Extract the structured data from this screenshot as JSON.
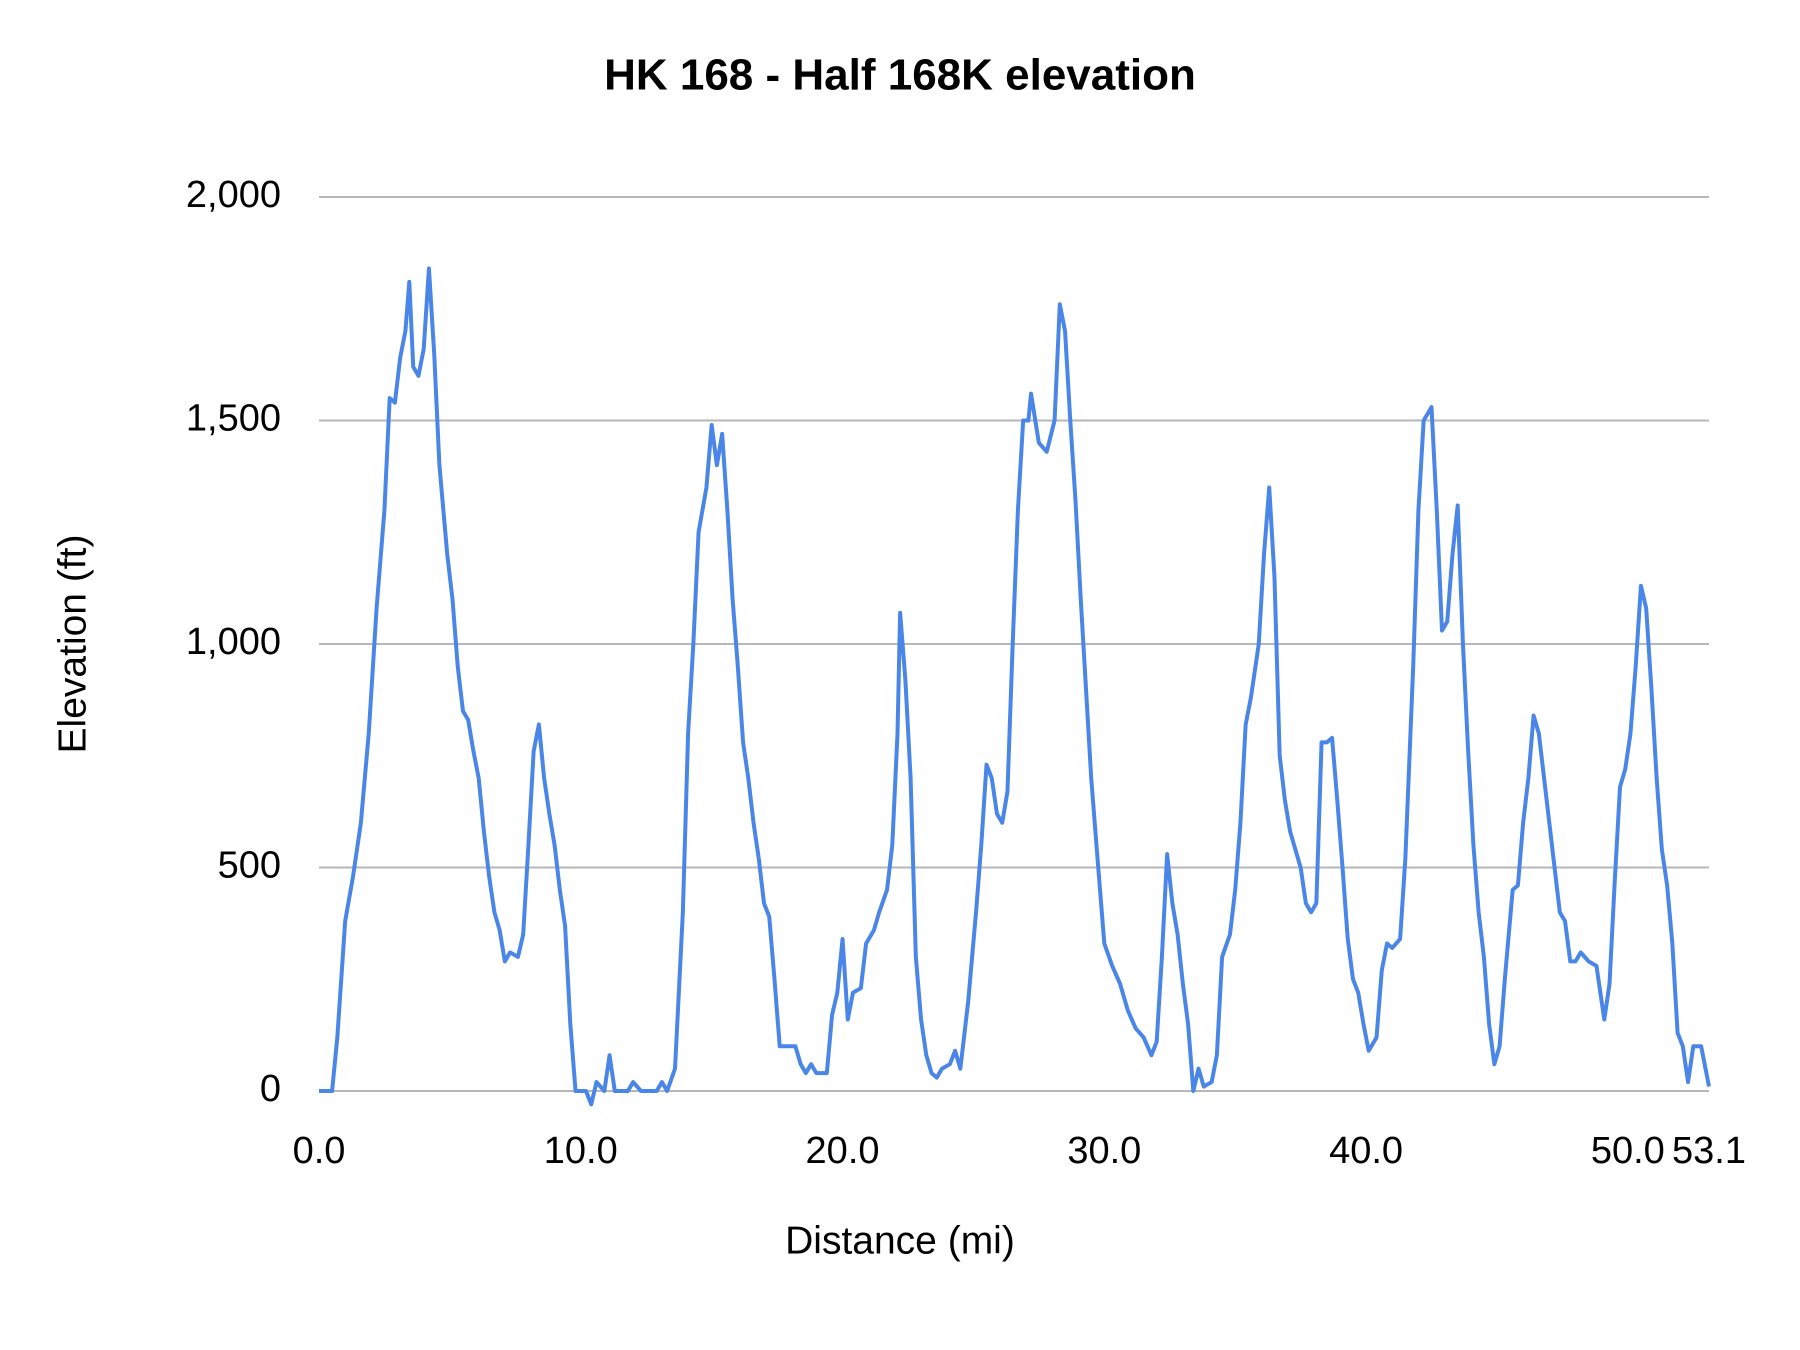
{
  "chart_data": {
    "type": "line",
    "title": "HK 168 - Half 168K elevation",
    "x_label": "Distance (mi)",
    "y_label": "Elevation (ft)",
    "color": "#4a86e8",
    "grid": true,
    "xlim": [
      0,
      53.1
    ],
    "ylim": [
      0,
      2000
    ],
    "xticks": [
      {
        "value": 0,
        "label": "0.0"
      },
      {
        "value": 10,
        "label": "10.0"
      },
      {
        "value": 20,
        "label": "20.0"
      },
      {
        "value": 30,
        "label": "30.0"
      },
      {
        "value": 40,
        "label": "40.0"
      },
      {
        "value": 50,
        "label": "50.0"
      },
      53.1
    ],
    "yticks": [
      0,
      500,
      {
        "value": 1000,
        "label": "1,000"
      },
      {
        "value": 1500,
        "label": "1,500"
      },
      {
        "value": 2000,
        "label": "2,000"
      }
    ],
    "x": [
      0,
      0.5,
      0.7,
      1.0,
      1.3,
      1.6,
      1.9,
      2.2,
      2.5,
      2.7,
      2.9,
      3.1,
      3.3,
      3.45,
      3.6,
      3.8,
      4.0,
      4.2,
      4.4,
      4.6,
      4.9,
      5.1,
      5.3,
      5.5,
      5.7,
      5.9,
      6.1,
      6.3,
      6.5,
      6.7,
      6.9,
      7.1,
      7.3,
      7.6,
      7.8,
      8.0,
      8.2,
      8.4,
      8.6,
      8.8,
      9.0,
      9.2,
      9.4,
      9.6,
      9.8,
      10.2,
      10.4,
      10.6,
      10.9,
      11.1,
      11.3,
      11.8,
      12.0,
      12.3,
      12.9,
      13.1,
      13.3,
      13.6,
      13.9,
      14.1,
      14.3,
      14.5,
      14.8,
      15.0,
      15.2,
      15.4,
      15.6,
      15.8,
      16.0,
      16.2,
      16.4,
      16.6,
      16.8,
      17.0,
      17.2,
      17.4,
      17.6,
      17.8,
      18.2,
      18.4,
      18.6,
      18.8,
      19.0,
      19.4,
      19.6,
      19.8,
      20.0,
      20.2,
      20.4,
      20.7,
      20.9,
      21.2,
      21.4,
      21.7,
      21.9,
      22.1,
      22.2,
      22.4,
      22.6,
      22.8,
      23.0,
      23.2,
      23.4,
      23.6,
      23.8,
      24.1,
      24.3,
      24.5,
      24.8,
      25.1,
      25.3,
      25.5,
      25.7,
      25.9,
      26.1,
      26.3,
      26.5,
      26.7,
      26.9,
      27.1,
      27.2,
      27.5,
      27.8,
      28.1,
      28.3,
      28.5,
      28.7,
      28.9,
      29.1,
      29.3,
      29.5,
      29.7,
      30.0,
      30.3,
      30.6,
      30.9,
      31.2,
      31.5,
      31.8,
      32.0,
      32.2,
      32.4,
      32.6,
      32.8,
      33.0,
      33.2,
      33.4,
      33.6,
      33.8,
      34.1,
      34.3,
      34.5,
      34.8,
      35.0,
      35.2,
      35.4,
      35.6,
      35.9,
      36.1,
      36.3,
      36.5,
      36.7,
      36.9,
      37.1,
      37.3,
      37.5,
      37.7,
      37.9,
      38.1,
      38.3,
      38.5,
      38.7,
      38.9,
      39.1,
      39.3,
      39.5,
      39.7,
      39.9,
      40.1,
      40.4,
      40.6,
      40.8,
      41.0,
      41.3,
      41.5,
      41.8,
      42.0,
      42.2,
      42.5,
      42.7,
      42.9,
      43.1,
      43.3,
      43.5,
      43.7,
      43.9,
      44.1,
      44.3,
      44.5,
      44.7,
      44.9,
      45.1,
      45.3,
      45.6,
      45.8,
      46.0,
      46.2,
      46.4,
      46.6,
      46.8,
      47.0,
      47.2,
      47.4,
      47.6,
      47.8,
      48.0,
      48.2,
      48.5,
      48.8,
      49.1,
      49.3,
      49.5,
      49.7,
      49.9,
      50.1,
      50.3,
      50.5,
      50.7,
      50.9,
      51.1,
      51.3,
      51.5,
      51.7,
      51.9,
      52.1,
      52.3,
      52.5,
      52.8,
      53.1
    ],
    "values": [
      0,
      0,
      120,
      380,
      480,
      600,
      800,
      1080,
      1300,
      1550,
      1540,
      1640,
      1700,
      1810,
      1620,
      1600,
      1660,
      1840,
      1650,
      1400,
      1200,
      1100,
      950,
      850,
      830,
      760,
      700,
      580,
      480,
      400,
      360,
      290,
      310,
      300,
      350,
      550,
      760,
      820,
      700,
      620,
      550,
      450,
      370,
      150,
      0,
      0,
      -30,
      20,
      0,
      80,
      0,
      0,
      20,
      0,
      0,
      20,
      0,
      50,
      400,
      800,
      1000,
      1250,
      1350,
      1490,
      1400,
      1470,
      1300,
      1100,
      950,
      780,
      700,
      600,
      520,
      420,
      390,
      250,
      100,
      100,
      100,
      60,
      40,
      60,
      40,
      40,
      170,
      220,
      340,
      160,
      220,
      230,
      330,
      360,
      400,
      450,
      550,
      800,
      1070,
      920,
      700,
      300,
      160,
      80,
      40,
      30,
      50,
      60,
      90,
      50,
      200,
      400,
      550,
      730,
      700,
      620,
      600,
      670,
      1000,
      1300,
      1500,
      1500,
      1560,
      1450,
      1430,
      1500,
      1760,
      1700,
      1500,
      1320,
      1100,
      900,
      700,
      550,
      330,
      280,
      240,
      180,
      140,
      120,
      80,
      110,
      300,
      530,
      420,
      350,
      240,
      150,
      0,
      50,
      10,
      20,
      80,
      300,
      350,
      450,
      600,
      820,
      880,
      1000,
      1200,
      1350,
      1150,
      750,
      650,
      580,
      540,
      500,
      420,
      400,
      420,
      780,
      780,
      790,
      650,
      500,
      340,
      250,
      220,
      150,
      90,
      120,
      270,
      330,
      320,
      340,
      520,
      950,
      1300,
      1500,
      1530,
      1300,
      1030,
      1050,
      1200,
      1310,
      1000,
      760,
      550,
      400,
      300,
      150,
      60,
      100,
      250,
      450,
      460,
      600,
      700,
      840,
      800,
      700,
      600,
      500,
      400,
      380,
      290,
      290,
      310,
      290,
      280,
      160,
      240,
      470,
      680,
      720,
      800,
      950,
      1130,
      1080,
      900,
      700,
      540,
      460,
      330,
      130,
      100,
      20,
      100,
      100,
      10
    ]
  }
}
